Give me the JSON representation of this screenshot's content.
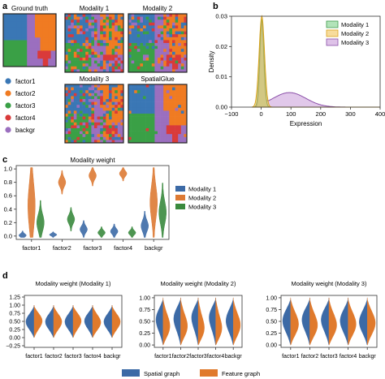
{
  "panel_letters": [
    "a",
    "b",
    "c",
    "d"
  ],
  "colors": {
    "factor1": "#3a77b5",
    "factor2": "#f07b22",
    "factor3": "#3aa046",
    "factor4": "#d93a3a",
    "backgr": "#9b6fbf",
    "modality1": "#3c6aa6",
    "modality2": "#dd7a34",
    "modality3": "#3a8a3e",
    "spatial": "#3c6aa6",
    "feature": "#e07a2c",
    "density_m1": "#7fd08a",
    "density_m2": "#f2c55a",
    "density_m3": "#c89ad8"
  },
  "panel_a": {
    "maps": [
      {
        "title": "Ground truth",
        "noise": 0.0
      },
      {
        "title": "Modality 1",
        "noise": 0.55
      },
      {
        "title": "Modality 2",
        "noise": 0.35
      },
      {
        "title": "Modality 3",
        "noise": 0.5
      },
      {
        "title": "SpatialGlue",
        "noise": 0.04
      }
    ],
    "legend": [
      "factor1",
      "factor2",
      "factor3",
      "factor4",
      "backgr"
    ]
  },
  "chart_data": [
    {
      "type": "area",
      "xlabel": "Expression",
      "ylabel": "Density",
      "xlim": [
        -100,
        400
      ],
      "ylim": [
        0,
        0.03
      ],
      "xticks": [
        "−100",
        "0",
        "100",
        "200",
        "300",
        "400"
      ],
      "yticks": [
        "0.00",
        "0.01",
        "0.02",
        "0.03"
      ],
      "legend_position": "top-right",
      "series": [
        {
          "name": "Modality 1",
          "peak_x": 2,
          "peak_y": 0.029,
          "width": 7,
          "tail_y": 0.0,
          "tail_x": 0,
          "tail_w": 1
        },
        {
          "name": "Modality 2",
          "peak_x": 2,
          "peak_y": 0.03,
          "width": 9,
          "tail_y": 0.0,
          "tail_x": 0,
          "tail_w": 1
        },
        {
          "name": "Modality 3",
          "peak_x": 2,
          "peak_y": 0.028,
          "width": 6,
          "tail_y": 0.0048,
          "tail_x": 95,
          "tail_w": 55
        }
      ]
    },
    {
      "type": "violin",
      "title": "Modality weight",
      "categories": [
        "factor1",
        "factor2",
        "factor3",
        "factor4",
        "backgr"
      ],
      "yticks": [
        "0.0",
        "0.2",
        "0.4",
        "0.6",
        "0.8",
        "1.0"
      ],
      "ylim": [
        -0.05,
        1.05
      ],
      "legend_position": "right",
      "series": [
        {
          "name": "Modality 1",
          "centers": [
            0.01,
            0.02,
            0.1,
            0.07,
            0.15
          ],
          "spreads": [
            0.03,
            0.02,
            0.06,
            0.05,
            0.1
          ]
        },
        {
          "name": "Modality 2",
          "centers": [
            0.45,
            0.8,
            0.9,
            0.93,
            0.5
          ],
          "spreads": [
            0.4,
            0.08,
            0.07,
            0.05,
            0.3
          ]
        },
        {
          "name": "Modality 3",
          "centers": [
            0.2,
            0.25,
            0.05,
            0.05,
            0.35
          ],
          "spreads": [
            0.15,
            0.08,
            0.04,
            0.04,
            0.2
          ]
        }
      ]
    },
    {
      "type": "violin",
      "title": "Modality weight (Modality 1)",
      "categories": [
        "factor1",
        "factor2",
        "factor3",
        "factor4",
        "backgr"
      ],
      "yticks": [
        "−0.25",
        "0.00",
        "0.25",
        "0.50",
        "0.75",
        "1.00",
        "1.25"
      ],
      "ylim": [
        -0.3,
        1.3
      ],
      "split": true,
      "series": [
        {
          "name": "Spatial graph",
          "centers": [
            0.5,
            0.5,
            0.5,
            0.55,
            0.5
          ]
        },
        {
          "name": "Feature graph",
          "centers": [
            0.55,
            0.5,
            0.55,
            0.45,
            0.5
          ]
        }
      ]
    },
    {
      "type": "violin",
      "title": "Modality weight (Modality 2)",
      "categories": [
        "factor1",
        "factor2",
        "factor3",
        "factor4",
        "backgr"
      ],
      "yticks": [
        "0.00",
        "0.25",
        "0.50",
        "0.75",
        "1.00"
      ],
      "ylim": [
        -0.05,
        1.05
      ],
      "split": true,
      "series": [
        {
          "name": "Spatial graph",
          "centers": [
            0.6,
            0.65,
            0.7,
            0.7,
            0.55
          ]
        },
        {
          "name": "Feature graph",
          "centers": [
            0.3,
            0.3,
            0.2,
            0.2,
            0.35
          ]
        }
      ]
    },
    {
      "type": "violin",
      "title": "Modality weight (Modality 3)",
      "categories": [
        "factor1",
        "factor2",
        "factor3",
        "factor4",
        "backgr"
      ],
      "yticks": [
        "0.00",
        "0.25",
        "0.50",
        "0.75",
        "1.00"
      ],
      "ylim": [
        -0.05,
        1.05
      ],
      "split": true,
      "series": [
        {
          "name": "Spatial graph",
          "centers": [
            0.55,
            0.6,
            0.6,
            0.55,
            0.5
          ]
        },
        {
          "name": "Feature graph",
          "centers": [
            0.4,
            0.35,
            0.35,
            0.4,
            0.45
          ]
        }
      ]
    }
  ],
  "panel_d_legend": [
    "Spatial graph",
    "Feature graph"
  ]
}
